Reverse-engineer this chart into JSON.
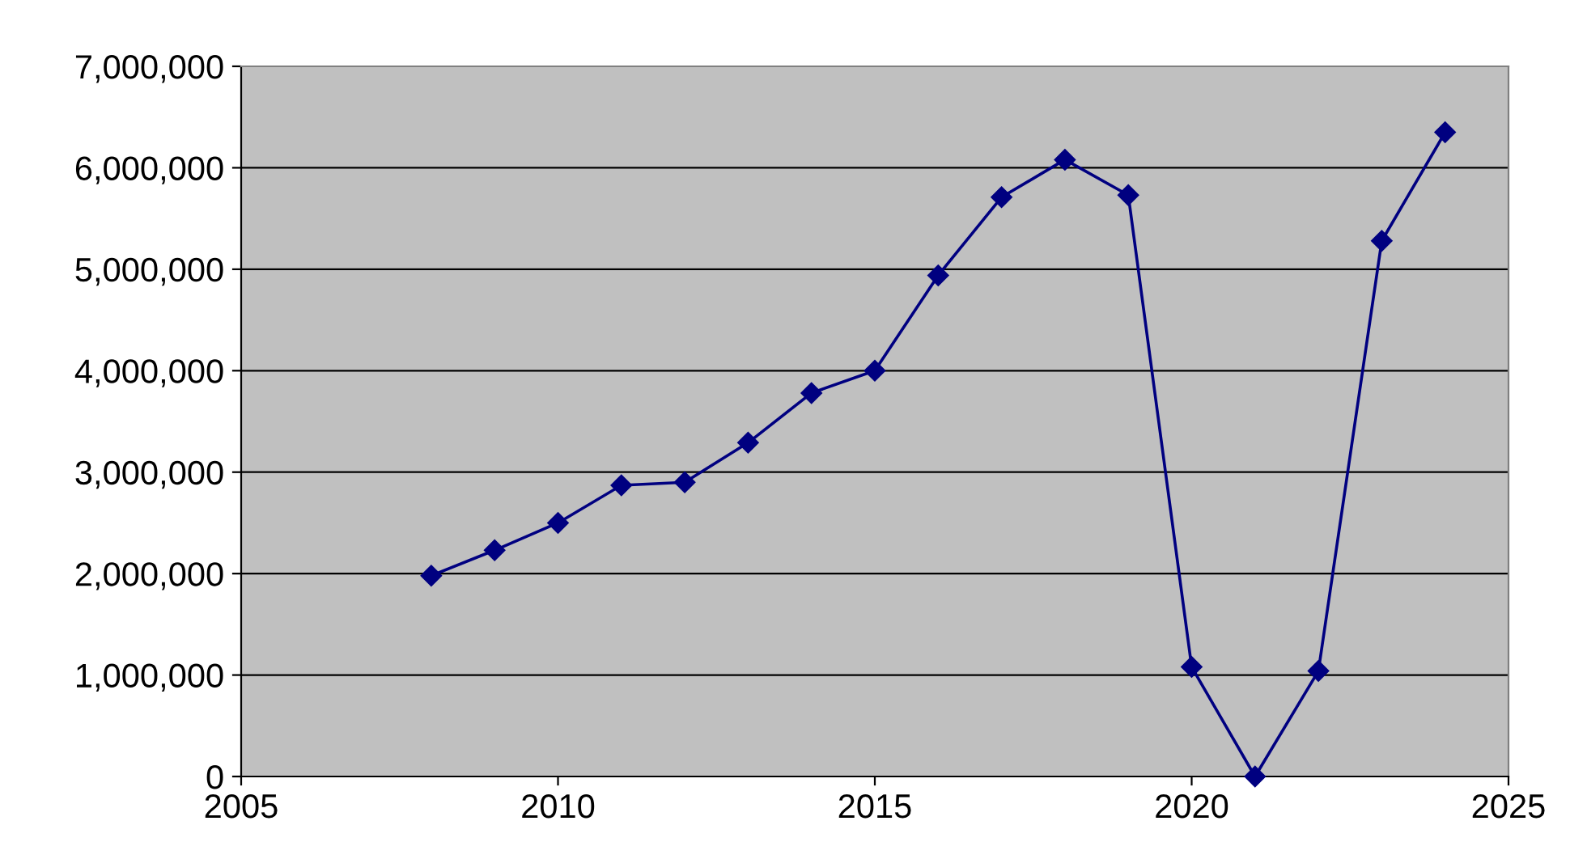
{
  "chart_data": {
    "type": "line",
    "x": [
      2008,
      2009,
      2010,
      2011,
      2012,
      2013,
      2014,
      2015,
      2016,
      2017,
      2018,
      2019,
      2020,
      2021,
      2022,
      2023,
      2024
    ],
    "series": [
      {
        "color": "#000080",
        "values": [
          1980000,
          2230000,
          2500000,
          2870000,
          2900000,
          3290000,
          3780000,
          4000000,
          4940000,
          5710000,
          6080000,
          5730000,
          1080000,
          0,
          1040000,
          5280000,
          6350000
        ]
      }
    ],
    "xlim": [
      2005,
      2025
    ],
    "xticks": [
      2005,
      2010,
      2015,
      2020,
      2025
    ],
    "ylim": [
      0,
      7000000
    ],
    "yticks": [
      {
        "value": 0,
        "label": "0"
      },
      {
        "value": 1000000,
        "label": "1,000,000"
      },
      {
        "value": 2000000,
        "label": "2,000,000"
      },
      {
        "value": 3000000,
        "label": "3,000,000"
      },
      {
        "value": 4000000,
        "label": "4,000,000"
      },
      {
        "value": 5000000,
        "label": "5,000,000"
      },
      {
        "value": 6000000,
        "label": "6,000,000"
      },
      {
        "value": 7000000,
        "label": "7,000,000"
      }
    ],
    "grid": "y",
    "marker": "diamond",
    "line_style": "solid",
    "legend": false
  }
}
